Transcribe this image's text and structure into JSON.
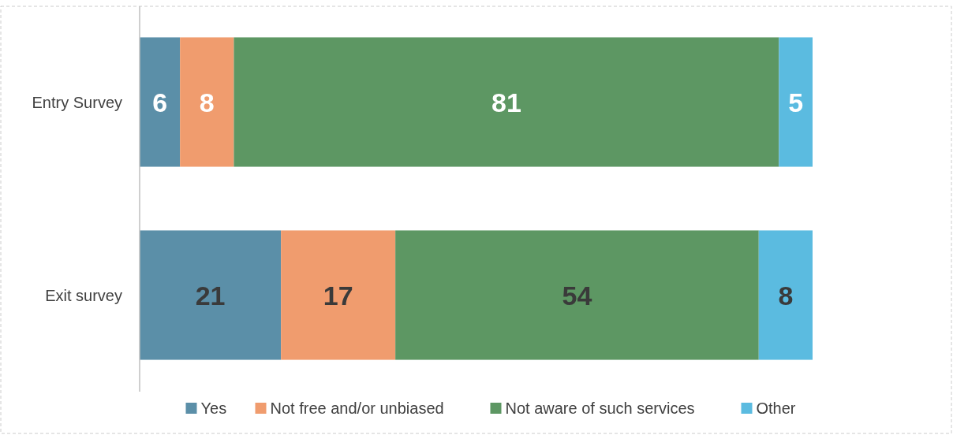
{
  "chart_data": {
    "type": "bar",
    "orientation": "horizontal",
    "stacked": true,
    "categories": [
      "Entry Survey",
      "Exit survey"
    ],
    "xlim": [
      0,
      100
    ],
    "data_labels": true,
    "legend": "bottom",
    "series": [
      {
        "name": "Yes",
        "color": "#5b8fa8",
        "values": [
          6,
          21
        ]
      },
      {
        "name": "Not free and/or unbiased",
        "color": "#f09c6e",
        "values": [
          8,
          17
        ]
      },
      {
        "name": "Not aware of such services",
        "color": "#5d9763",
        "values": [
          81,
          54
        ]
      },
      {
        "name": "Other",
        "color": "#5bbbe0",
        "values": [
          5,
          8
        ]
      }
    ]
  }
}
